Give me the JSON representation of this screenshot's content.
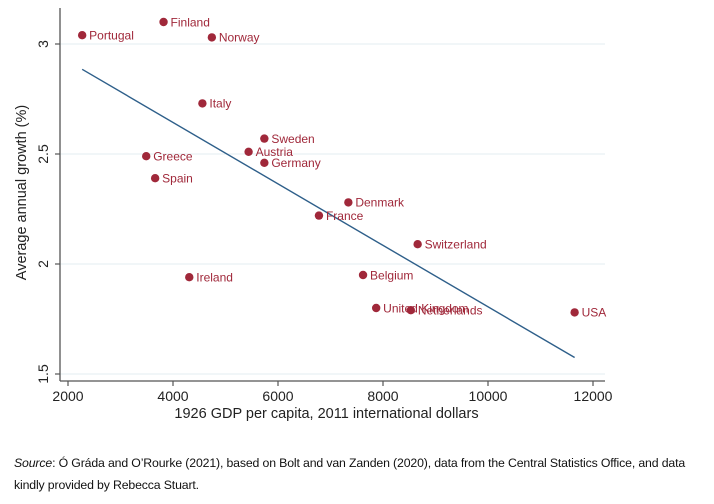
{
  "chart_data": {
    "type": "scatter",
    "title": "",
    "xlabel": "1926 GDP per capita, 2011 international dollars",
    "ylabel": "Average annual growth (%)",
    "xlim": [
      1800,
      12200
    ],
    "ylim": [
      1.5,
      3.15
    ],
    "xticks": [
      2000,
      4000,
      6000,
      8000,
      10000,
      12000
    ],
    "yticks": [
      1.5,
      2,
      2.5,
      3
    ],
    "xtick_labels": [
      "2000",
      "4000",
      "6000",
      "8000",
      "10000",
      "12000"
    ],
    "ytick_labels": [
      "1.5",
      "2",
      "2.5",
      "3"
    ],
    "grid": "horizontal",
    "legend": "none",
    "marker_color": "#a0283a",
    "line_color": "#2e5f8a",
    "points": [
      {
        "label": "Portugal",
        "x": 2270,
        "y": 3.04
      },
      {
        "label": "Finland",
        "x": 3820,
        "y": 3.1
      },
      {
        "label": "Norway",
        "x": 4740,
        "y": 3.03
      },
      {
        "label": "Italy",
        "x": 4560,
        "y": 2.73
      },
      {
        "label": "Sweden",
        "x": 5740,
        "y": 2.57
      },
      {
        "label": "Austria",
        "x": 5440,
        "y": 2.51
      },
      {
        "label": "Germany",
        "x": 5740,
        "y": 2.46
      },
      {
        "label": "Greece",
        "x": 3490,
        "y": 2.49
      },
      {
        "label": "Spain",
        "x": 3660,
        "y": 2.39
      },
      {
        "label": "Denmark",
        "x": 7340,
        "y": 2.28
      },
      {
        "label": "France",
        "x": 6780,
        "y": 2.22
      },
      {
        "label": "Switzerland",
        "x": 8660,
        "y": 2.09
      },
      {
        "label": "Belgium",
        "x": 7620,
        "y": 1.95
      },
      {
        "label": "Ireland",
        "x": 4310,
        "y": 1.94
      },
      {
        "label": "United Kingdom",
        "x": 7870,
        "y": 1.8
      },
      {
        "label": "Netherlands",
        "x": 8530,
        "y": 1.79
      },
      {
        "label": "USA",
        "x": 11650,
        "y": 1.78
      }
    ],
    "fit_line": {
      "x": [
        2270,
        11650
      ],
      "y": [
        2.885,
        1.575
      ]
    }
  },
  "caption": {
    "source_label": "Source",
    "text": ": Ó Gráda and O’Rourke (2021), based on Bolt and van Zanden (2020), data from the Central Statistics Office, and data kindly provided by Rebecca Stuart."
  }
}
